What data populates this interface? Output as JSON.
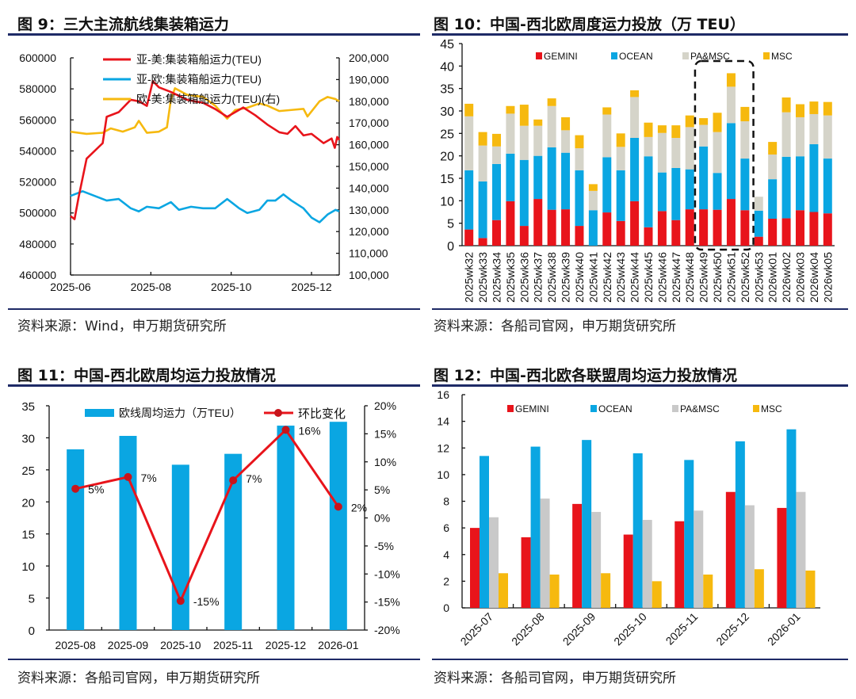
{
  "panels": [
    {
      "title": "图 9：三大主流航线集装箱运力",
      "source": "资料来源：Wind，申万期货研究所"
    },
    {
      "title": "图 10：中国-西北欧周度运力投放（万 TEU）",
      "source": "资料来源：各船司官网，申万期货研究所"
    },
    {
      "title": "图 11：中国-西北欧周均运力投放情况",
      "source": "资料来源：各船司官网，申万期货研究所"
    },
    {
      "title": "图 12：中国-西北欧各联盟周均运力投放情况",
      "source": "资料来源：各船司官网，申万期货研究所"
    }
  ],
  "colors": {
    "red": "#e8141b",
    "blue": "#0aa6e2",
    "gray": "#d5d4c9",
    "gray2": "#c9c9c9",
    "yellow": "#f6b90f",
    "rule": "#1e2a66"
  },
  "chart_data": [
    {
      "type": "line",
      "title": "三大主流航线集装箱运力",
      "x_ticks": [
        "2025-06",
        "2025-08",
        "2025-10",
        "2025-12"
      ],
      "x_tick_months": [
        6,
        8,
        10,
        12
      ],
      "xlim_months": [
        6,
        12.69
      ],
      "y_left": {
        "ylim": [
          460000,
          600000
        ],
        "ticks": [
          "460000",
          "480000",
          "500000",
          "520000",
          "540000",
          "560000",
          "580000",
          "600000"
        ]
      },
      "y_right": {
        "ylim": [
          100000,
          200000
        ],
        "ticks": [
          "100,000",
          "110,000",
          "120,000",
          "130,000",
          "140,000",
          "150,000",
          "160,000",
          "170,000",
          "180,000",
          "190,000",
          "200,000"
        ]
      },
      "series": [
        {
          "name": "亚-美:集装箱船运力(TEU)",
          "axis": "left",
          "color": "#e8141b",
          "points": [
            [
              6.0,
              498000
            ],
            [
              6.1,
              496000
            ],
            [
              6.2,
              510000
            ],
            [
              6.4,
              535000
            ],
            [
              6.6,
              540000
            ],
            [
              6.8,
              545000
            ],
            [
              6.9,
              562000
            ],
            [
              7.2,
              565000
            ],
            [
              7.5,
              573000
            ],
            [
              7.7,
              572000
            ],
            [
              7.9,
              569000
            ],
            [
              8.05,
              585000
            ],
            [
              8.2,
              581000
            ],
            [
              8.5,
              578000
            ],
            [
              8.9,
              573000
            ],
            [
              9.3,
              571000
            ],
            [
              9.6,
              567000
            ],
            [
              9.9,
              562000
            ],
            [
              10.3,
              568000
            ],
            [
              10.6,
              563000
            ],
            [
              10.9,
              557000
            ],
            [
              11.2,
              552000
            ],
            [
              11.4,
              551000
            ],
            [
              11.6,
              556000
            ],
            [
              11.8,
              550000
            ],
            [
              12.0,
              551000
            ],
            [
              12.3,
              545000
            ],
            [
              12.5,
              548000
            ],
            [
              12.58,
              542000
            ],
            [
              12.64,
              549000
            ],
            [
              12.69,
              547000
            ]
          ]
        },
        {
          "name": "亚-欧:集装箱船运力(TEU)",
          "axis": "left",
          "color": "#0aa6e2",
          "points": [
            [
              6.0,
              511000
            ],
            [
              6.3,
              514000
            ],
            [
              6.6,
              511000
            ],
            [
              6.9,
              508000
            ],
            [
              7.2,
              509000
            ],
            [
              7.5,
              503000
            ],
            [
              7.7,
              501000
            ],
            [
              7.9,
              504000
            ],
            [
              8.2,
              503000
            ],
            [
              8.5,
              507000
            ],
            [
              8.7,
              502000
            ],
            [
              9.0,
              504000
            ],
            [
              9.3,
              503000
            ],
            [
              9.6,
              503000
            ],
            [
              9.9,
              509000
            ],
            [
              10.2,
              503000
            ],
            [
              10.4,
              500000
            ],
            [
              10.7,
              502000
            ],
            [
              10.9,
              508000
            ],
            [
              11.1,
              508000
            ],
            [
              11.3,
              512000
            ],
            [
              11.5,
              508000
            ],
            [
              11.8,
              503000
            ],
            [
              12.0,
              497000
            ],
            [
              12.2,
              494000
            ],
            [
              12.4,
              499000
            ],
            [
              12.6,
              502000
            ],
            [
              12.69,
              501000
            ]
          ]
        },
        {
          "name": "欧-美:集装箱船运力(TEU)(右)",
          "axis": "right",
          "color": "#f6b90f",
          "points": [
            [
              6.0,
              166000
            ],
            [
              6.4,
              165000
            ],
            [
              6.8,
              165500
            ],
            [
              7.0,
              167500
            ],
            [
              7.3,
              166000
            ],
            [
              7.6,
              168000
            ],
            [
              7.7,
              171000
            ],
            [
              7.9,
              165500
            ],
            [
              8.2,
              166000
            ],
            [
              8.4,
              168000
            ],
            [
              8.5,
              181000
            ],
            [
              8.6,
              186000
            ],
            [
              8.9,
              183000
            ],
            [
              9.3,
              182000
            ],
            [
              9.6,
              178000
            ],
            [
              9.9,
              172000
            ],
            [
              10.1,
              176000
            ],
            [
              10.4,
              177000
            ],
            [
              10.7,
              179000
            ],
            [
              10.9,
              178000
            ],
            [
              11.2,
              175500
            ],
            [
              11.5,
              176000
            ],
            [
              11.8,
              176500
            ],
            [
              11.9,
              173000
            ],
            [
              12.2,
              180000
            ],
            [
              12.4,
              182000
            ],
            [
              12.6,
              181000
            ],
            [
              12.69,
              180000
            ]
          ]
        }
      ]
    },
    {
      "type": "bar",
      "stacked": true,
      "title": "中国-西北欧周度运力投放（万 TEU）",
      "ylim": [
        0,
        45
      ],
      "y_ticks": [
        "0",
        "5",
        "10",
        "15",
        "20",
        "25",
        "30",
        "35",
        "40",
        "45"
      ],
      "categories": [
        "2025wk32",
        "2025wk33",
        "2025wk34",
        "2025wk35",
        "2025wk36",
        "2025wk37",
        "2025wk38",
        "2025wk39",
        "2025wk40",
        "2025wk41",
        "2025wk42",
        "2025wk43",
        "2025wk44",
        "2025wk45",
        "2025wk46",
        "2025wk47",
        "2025wk48",
        "2025wk49",
        "2025wk50",
        "2025wk51",
        "2025wk52",
        "2025wk53",
        "2026wk01",
        "2026wk02",
        "2026wk03",
        "2026wk04",
        "2026wk05"
      ],
      "highlight": [
        "2025wk49",
        "2025wk52"
      ],
      "series": [
        {
          "name": "GEMINI",
          "color": "#e8141b",
          "values": [
            3.6,
            1.7,
            5.7,
            9.9,
            4.4,
            10.4,
            8,
            8.1,
            4.4,
            0,
            7.4,
            5.5,
            9.9,
            4.1,
            7.7,
            5.7,
            8.1,
            8.1,
            8,
            10.4,
            7.9,
            2,
            6,
            6.1,
            7.9,
            7.5,
            7.2
          ]
        },
        {
          "name": "OCEAN",
          "color": "#0aa6e2",
          "values": [
            13.2,
            12.6,
            12.5,
            10.6,
            14.7,
            9.6,
            13.9,
            12.6,
            12.4,
            7.9,
            12.3,
            11.3,
            14.1,
            15.8,
            8.6,
            11.6,
            8.9,
            14,
            8.2,
            16.9,
            11.5,
            5.8,
            8.8,
            13.7,
            12,
            15.1,
            12.2
          ]
        },
        {
          "name": "PA&MSC",
          "color": "#d5d4c9",
          "values": [
            12,
            8,
            3.9,
            8.9,
            7.6,
            6.7,
            9.2,
            5,
            4.9,
            4.3,
            9.5,
            5.2,
            9.1,
            4.3,
            8.8,
            6.7,
            9.4,
            4.8,
            9.1,
            8.1,
            8.3,
            3.1,
            5.5,
            9.9,
            8.7,
            6.7,
            9.6
          ]
        },
        {
          "name": "MSC",
          "color": "#f6b90f",
          "values": [
            2.8,
            3,
            2.8,
            1.7,
            4.7,
            1.4,
            1.7,
            2.9,
            2.9,
            1.5,
            1.6,
            3,
            1.5,
            3.2,
            1.7,
            2.8,
            2.6,
            1.5,
            4.3,
            3,
            3.2,
            0,
            2.8,
            3.3,
            2.9,
            2.8,
            3
          ]
        }
      ]
    },
    {
      "type": "bar",
      "title": "中国-西北欧周均运力投放情况",
      "categories": [
        "2025-08",
        "2025-09",
        "2025-10",
        "2025-11",
        "2025-12",
        "2026-01"
      ],
      "y_left": {
        "ylim": [
          0,
          35
        ],
        "ticks": [
          "0",
          "5",
          "10",
          "15",
          "20",
          "25",
          "30",
          "35"
        ]
      },
      "y_right": {
        "ylim": [
          -20,
          20
        ],
        "ticks": [
          "-20%",
          "-15%",
          "-10%",
          "-5%",
          "0%",
          "5%",
          "10%",
          "15%",
          "20%"
        ]
      },
      "series": [
        {
          "name": "欧线周均运力（万TEU）",
          "type": "bar",
          "color": "#0aa6e2",
          "values": [
            28.2,
            30.3,
            25.8,
            27.5,
            31.9,
            32.5
          ]
        },
        {
          "name": "环比变化",
          "type": "line",
          "color": "#e8141b",
          "values": [
            5.2,
            7.3,
            -14.8,
            6.7,
            15.7,
            2.0
          ],
          "labels": [
            "5%",
            "7%",
            "-15%",
            "7%",
            "16%",
            "2%"
          ]
        }
      ]
    },
    {
      "type": "bar",
      "title": "中国-西北欧各联盟周均运力投放情况",
      "ylim": [
        0,
        16
      ],
      "y_ticks": [
        "0",
        "2",
        "4",
        "6",
        "8",
        "10",
        "12",
        "14",
        "16"
      ],
      "categories": [
        "2025-07",
        "2025-08",
        "2025-09",
        "2025-10",
        "2025-11",
        "2025-12",
        "2026-01"
      ],
      "series": [
        {
          "name": "GEMINI",
          "color": "#e8141b",
          "values": [
            6.0,
            5.3,
            7.8,
            5.5,
            6.5,
            8.7,
            7.5
          ]
        },
        {
          "name": "OCEAN",
          "color": "#0aa6e2",
          "values": [
            11.4,
            12.1,
            12.6,
            11.6,
            11.1,
            12.5,
            13.4
          ]
        },
        {
          "name": "PA&MSC",
          "color": "#c9c9c9",
          "values": [
            6.8,
            8.2,
            7.2,
            6.6,
            7.3,
            7.7,
            8.7
          ]
        },
        {
          "name": "MSC",
          "color": "#f6b90f",
          "values": [
            2.6,
            2.5,
            2.6,
            2.0,
            2.5,
            2.9,
            2.8
          ]
        }
      ]
    }
  ]
}
